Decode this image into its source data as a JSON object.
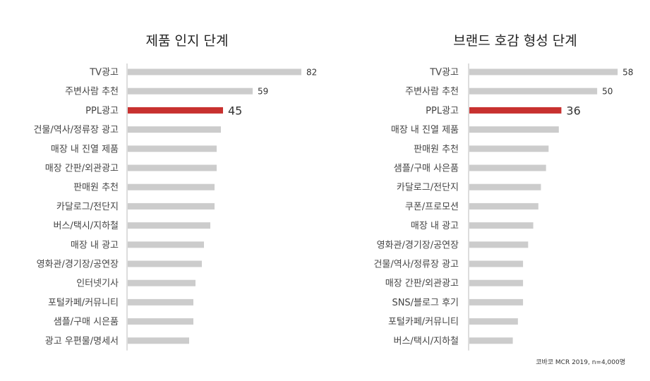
{
  "colors": {
    "bar": "#cccccc",
    "highlight": "#c8312f",
    "axis": "#bbbbbb"
  },
  "source": "코바코 MCR 2019, n=4,000명",
  "chart_data": [
    {
      "type": "bar",
      "orientation": "horizontal",
      "title": "제품 인지 단계",
      "categories": [
        "TV광고",
        "주변사람 추천",
        "PPL광고",
        "건물/역사/정류장 광고",
        "매장 내 진열 제품",
        "매장 간판/외관광고",
        "판매원 추천",
        "카달로그/전단지",
        "버스/택시/지하철",
        "매장 내 광고",
        "영화관/경기장/공연장",
        "인터넷기사",
        "포털카페/커뮤니티",
        "샘플/구매 시은품",
        "광고 우편물/명세서"
      ],
      "values": [
        82,
        59,
        45,
        44,
        42,
        42,
        41,
        41,
        39,
        36,
        35,
        32,
        31,
        31,
        29
      ],
      "labels": [
        "82",
        "59",
        "45",
        "",
        "",
        "",
        "",
        "",
        "",
        "",
        "",
        "",
        "",
        "",
        ""
      ],
      "highlight_index": 2,
      "xlim": [
        0,
        100
      ]
    },
    {
      "type": "bar",
      "orientation": "horizontal",
      "title": "브랜드 호감 형성 단계",
      "categories": [
        "TV광고",
        "주변사람 추천",
        "PPL광고",
        "매장 내 진열 제품",
        "판매원 추천",
        "샘플/구매 사은품",
        "카달로그/전단지",
        "쿠폰/프로모션",
        "매장 내 광고",
        "영화관/경기장/공연장",
        "건물/역사/정류장 광고",
        "매장 간판/외관광고",
        "SNS/블로그 후기",
        "포털카페/커뮤니티",
        "버스/택시/지하철"
      ],
      "values": [
        58,
        50,
        36,
        35,
        31,
        30,
        28,
        27,
        25,
        23,
        21,
        21,
        21,
        19,
        17
      ],
      "labels": [
        "58",
        "50",
        "36",
        "",
        "",
        "",
        "",
        "",
        "",
        "",
        "",
        "",
        "",
        "",
        ""
      ],
      "highlight_index": 2,
      "xlim": [
        0,
        61
      ]
    }
  ]
}
